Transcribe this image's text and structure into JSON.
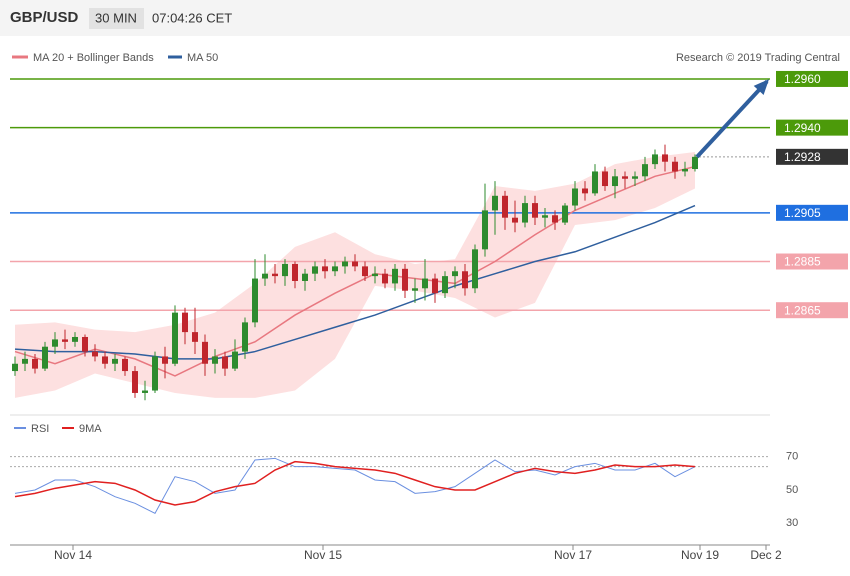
{
  "chart_data": {
    "type": "candlestick",
    "header": {
      "symbol": "GBP/USD",
      "interval": "30 MIN",
      "time": "07:04:26 CET"
    },
    "legend": {
      "ma20": "MA 20 + Bollinger Bands",
      "ma50": "MA 50",
      "credit": "Research © 2019 Trading Central"
    },
    "xlim": [
      -0.5,
      75.5
    ],
    "xticks": [
      {
        "value": 5.8,
        "label": "Nov 14"
      },
      {
        "value": 30.8,
        "label": "Nov 15"
      },
      {
        "value": 55.8,
        "label": "Nov 17"
      },
      {
        "value": 68.5,
        "label": "Nov 19"
      },
      {
        "value": 75.1,
        "label": "Dec 2"
      }
    ],
    "ylim": [
      1.2824,
      1.2976
    ],
    "colors": {
      "up": "#2e8b2e",
      "down": "#c0262d",
      "band": "#fde0e0",
      "ma20": "#e87880",
      "ma50": "#2f5f9e",
      "arrow": "#2f5f9e"
    },
    "candles": [
      [
        1.284,
        1.2846,
        1.2838,
        1.2843
      ],
      [
        1.2843,
        1.2848,
        1.284,
        1.2845
      ],
      [
        1.2845,
        1.2847,
        1.2839,
        1.2841
      ],
      [
        1.2841,
        1.2852,
        1.284,
        1.285
      ],
      [
        1.285,
        1.2856,
        1.2847,
        1.2853
      ],
      [
        1.2853,
        1.2857,
        1.2849,
        1.2852
      ],
      [
        1.2852,
        1.2856,
        1.285,
        1.2854
      ],
      [
        1.2854,
        1.2855,
        1.2846,
        1.2848
      ],
      [
        1.2848,
        1.2851,
        1.2844,
        1.2846
      ],
      [
        1.2846,
        1.2848,
        1.2841,
        1.2843
      ],
      [
        1.2843,
        1.2847,
        1.284,
        1.2845
      ],
      [
        1.2845,
        1.2846,
        1.2838,
        1.284
      ],
      [
        1.284,
        1.2842,
        1.2829,
        1.2831
      ],
      [
        1.2831,
        1.2836,
        1.2828,
        1.2832
      ],
      [
        1.2832,
        1.2848,
        1.2831,
        1.2846
      ],
      [
        1.2846,
        1.285,
        1.2837,
        1.2843
      ],
      [
        1.2843,
        1.2867,
        1.2842,
        1.2864
      ],
      [
        1.2864,
        1.2866,
        1.2851,
        1.2856
      ],
      [
        1.2856,
        1.2866,
        1.2847,
        1.2852
      ],
      [
        1.2852,
        1.2855,
        1.2838,
        1.2843
      ],
      [
        1.2843,
        1.2849,
        1.2839,
        1.2846
      ],
      [
        1.2846,
        1.2848,
        1.2838,
        1.2841
      ],
      [
        1.2841,
        1.2853,
        1.284,
        1.2848
      ],
      [
        1.2848,
        1.2862,
        1.2845,
        1.286
      ],
      [
        1.286,
        1.2886,
        1.2858,
        1.2878
      ],
      [
        1.2878,
        1.2888,
        1.2875,
        1.288
      ],
      [
        1.288,
        1.2884,
        1.2876,
        1.2879
      ],
      [
        1.2879,
        1.2886,
        1.2875,
        1.2884
      ],
      [
        1.2884,
        1.2885,
        1.2874,
        1.2877
      ],
      [
        1.2877,
        1.2882,
        1.2873,
        1.288
      ],
      [
        1.288,
        1.2885,
        1.2877,
        1.2883
      ],
      [
        1.2883,
        1.2886,
        1.2878,
        1.2881
      ],
      [
        1.2881,
        1.2885,
        1.2879,
        1.2883
      ],
      [
        1.2883,
        1.2887,
        1.288,
        1.2885
      ],
      [
        1.2885,
        1.2888,
        1.2881,
        1.2883
      ],
      [
        1.2883,
        1.2885,
        1.2877,
        1.2879
      ],
      [
        1.2879,
        1.2883,
        1.2876,
        1.288
      ],
      [
        1.288,
        1.2882,
        1.2874,
        1.2876
      ],
      [
        1.2876,
        1.2884,
        1.2873,
        1.2882
      ],
      [
        1.2882,
        1.2884,
        1.287,
        1.2873
      ],
      [
        1.2873,
        1.2878,
        1.2868,
        1.2874
      ],
      [
        1.2874,
        1.2886,
        1.2869,
        1.2878
      ],
      [
        1.2878,
        1.288,
        1.2868,
        1.2872
      ],
      [
        1.2872,
        1.2881,
        1.287,
        1.2879
      ],
      [
        1.2879,
        1.2883,
        1.2874,
        1.2881
      ],
      [
        1.2881,
        1.2884,
        1.2871,
        1.2874
      ],
      [
        1.2874,
        1.2892,
        1.2872,
        1.289
      ],
      [
        1.289,
        1.2917,
        1.2887,
        1.2906
      ],
      [
        1.2906,
        1.2918,
        1.2896,
        1.2912
      ],
      [
        1.2912,
        1.2914,
        1.2898,
        1.2903
      ],
      [
        1.2903,
        1.291,
        1.2897,
        1.2901
      ],
      [
        1.2901,
        1.2912,
        1.2899,
        1.2909
      ],
      [
        1.2909,
        1.2912,
        1.29,
        1.2903
      ],
      [
        1.2903,
        1.2907,
        1.2899,
        1.2904
      ],
      [
        1.2904,
        1.2906,
        1.2898,
        1.2901
      ],
      [
        1.2901,
        1.2909,
        1.29,
        1.2908
      ],
      [
        1.2908,
        1.2918,
        1.2906,
        1.2915
      ],
      [
        1.2915,
        1.2918,
        1.291,
        1.2913
      ],
      [
        1.2913,
        1.2925,
        1.2912,
        1.2922
      ],
      [
        1.2922,
        1.2924,
        1.2914,
        1.2916
      ],
      [
        1.2916,
        1.2923,
        1.2911,
        1.292
      ],
      [
        1.292,
        1.2922,
        1.2915,
        1.2919
      ],
      [
        1.2919,
        1.2922,
        1.2916,
        1.292
      ],
      [
        1.292,
        1.2928,
        1.2918,
        1.2925
      ],
      [
        1.2925,
        1.2931,
        1.2923,
        1.2929
      ],
      [
        1.2929,
        1.2933,
        1.2922,
        1.2926
      ],
      [
        1.2926,
        1.2928,
        1.2919,
        1.2922
      ],
      [
        1.2922,
        1.2926,
        1.292,
        1.2923
      ],
      [
        1.2923,
        1.2929,
        1.2922,
        1.2928
      ]
    ],
    "indicator_x": [
      0,
      4,
      8,
      12,
      16,
      20,
      24,
      28,
      32,
      36,
      40,
      44,
      48,
      52,
      56,
      60,
      64,
      68
    ],
    "ma50": [
      1.2849,
      1.2848,
      1.2848,
      1.2847,
      1.2845,
      1.2845,
      1.2848,
      1.2853,
      1.2858,
      1.2863,
      1.2869,
      1.2875,
      1.288,
      1.2885,
      1.2889,
      1.2895,
      1.2901,
      1.2908
    ],
    "ma20": [
      1.2848,
      1.2843,
      1.2849,
      1.2845,
      1.2838,
      1.2846,
      1.2852,
      1.2863,
      1.2872,
      1.288,
      1.2878,
      1.2876,
      1.2885,
      1.2896,
      1.2906,
      1.2913,
      1.292,
      1.2924
    ],
    "band_upper": [
      1.2859,
      1.286,
      1.2857,
      1.2856,
      1.2859,
      1.2864,
      1.2876,
      1.2891,
      1.2897,
      1.2888,
      1.2884,
      1.2886,
      1.2916,
      1.2914,
      1.2917,
      1.2925,
      1.2928,
      1.293
    ],
    "band_lower": [
      1.2829,
      1.2832,
      1.2839,
      1.2835,
      1.2831,
      1.2829,
      1.2829,
      1.2832,
      1.2845,
      1.2875,
      1.2873,
      1.287,
      1.2862,
      1.2868,
      1.29,
      1.2902,
      1.2907,
      1.2915
    ],
    "levels": [
      {
        "value": 1.296,
        "label": "1.2960",
        "color": "#4c9a0a",
        "style": "solid"
      },
      {
        "value": 1.294,
        "label": "1.2940",
        "color": "#4c9a0a",
        "style": "solid"
      },
      {
        "value": 1.2928,
        "color": "#333333",
        "style": "dotted"
      },
      {
        "value": 1.2905,
        "color": "#1f6fe0",
        "style": "solid"
      },
      {
        "value": 1.2885,
        "color": "#f3a4ab",
        "style": "solid"
      },
      {
        "value": 1.2865,
        "color": "#f3a4ab",
        "style": "solid"
      }
    ],
    "arrow": {
      "from": [
        68.2,
        1.2928
      ],
      "to": [
        75.2,
        1.2959
      ]
    },
    "rsi": {
      "ylim": [
        20,
        80
      ],
      "yticks": [
        30,
        50,
        70
      ],
      "dotted_levels": [
        70,
        64
      ],
      "x": [
        0,
        2,
        4,
        6,
        8,
        10,
        12,
        14,
        16,
        18,
        20,
        22,
        24,
        26,
        28,
        30,
        32,
        34,
        36,
        38,
        40,
        42,
        44,
        46,
        48,
        50,
        52,
        54,
        56,
        58,
        60,
        62,
        64,
        66,
        68
      ],
      "series": [
        {
          "name": "RSI",
          "color": "#6a8fe0",
          "values": [
            48,
            50,
            56,
            56,
            52,
            46,
            42,
            36,
            58,
            55,
            48,
            50,
            68,
            69,
            64,
            64,
            63,
            62,
            56,
            55,
            48,
            49,
            52,
            60,
            68,
            61,
            62,
            59,
            64,
            66,
            62,
            62,
            66,
            58,
            64
          ]
        },
        {
          "name": "9MA",
          "color": "#e02020",
          "values": [
            46,
            48,
            51,
            53,
            55,
            54,
            50,
            44,
            41,
            43,
            49,
            52,
            54,
            62,
            67,
            66,
            64,
            63,
            62,
            60,
            56,
            52,
            50,
            50,
            55,
            60,
            63,
            61,
            60,
            62,
            65,
            64,
            64,
            65,
            64
          ]
        }
      ]
    }
  }
}
